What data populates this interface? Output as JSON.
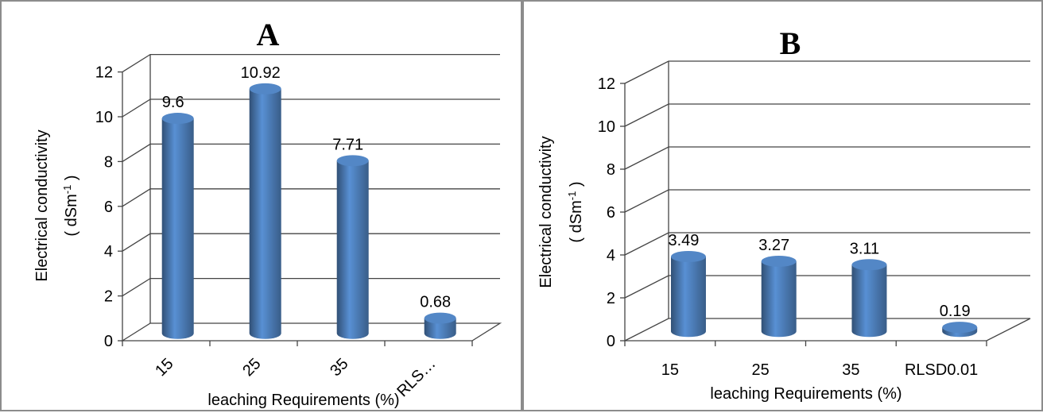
{
  "chart_data": [
    {
      "type": "bar",
      "title": "A",
      "categories": [
        "15",
        "25",
        "35",
        "RLS…"
      ],
      "values": [
        9.6,
        10.92,
        7.71,
        0.68
      ],
      "data_labels": [
        "9.6",
        "10.92",
        "7.71",
        "0.68"
      ],
      "ylabel": "Electrical conductivity",
      "ylabel_unit_prefix": "( dSm",
      "ylabel_unit_sup": "-1",
      "ylabel_unit_suffix": " )",
      "xlabel": "leaching Requirements (%)",
      "ylim": [
        0,
        12
      ],
      "yticks": [
        "0",
        "2",
        "4",
        "6",
        "8",
        "10",
        "12"
      ],
      "grid": true,
      "legend": "none",
      "bar_color": "#4f81bd",
      "x_tick_rotation": "diagonal"
    },
    {
      "type": "bar",
      "title": "B",
      "categories": [
        "15",
        "25",
        "35",
        "RLSD0.01"
      ],
      "values": [
        3.49,
        3.27,
        3.11,
        0.19
      ],
      "data_labels": [
        "3.49",
        "3.27",
        "3.11",
        "0.19"
      ],
      "ylabel": "Electrical  conductivity",
      "ylabel_unit_prefix": "( dSm",
      "ylabel_unit_sup": "-1",
      "ylabel_unit_suffix": " )",
      "xlabel": "leaching Requirements (%)",
      "ylim": [
        0,
        12
      ],
      "yticks": [
        "0",
        "2",
        "4",
        "6",
        "8",
        "10",
        "12"
      ],
      "grid": true,
      "legend": "none",
      "bar_color": "#4f81bd",
      "x_tick_rotation": "horizontal"
    }
  ]
}
